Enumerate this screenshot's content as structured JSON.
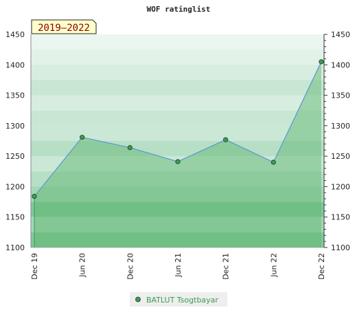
{
  "chart_data": {
    "type": "area",
    "title": "WOF ratinglist",
    "period_label": "2019–2022",
    "x": [
      "Dec 19",
      "Jun 20",
      "Dec 20",
      "Jun 21",
      "Dec 21",
      "Jun 22",
      "Dec 22"
    ],
    "series": [
      {
        "name": "BATLUT Tsogtbayar",
        "values": [
          1184,
          1281,
          1264,
          1241,
          1277,
          1240,
          1405
        ]
      }
    ],
    "ylim": [
      1100,
      1450
    ],
    "yticks": [
      1100,
      1150,
      1200,
      1250,
      1300,
      1350,
      1400,
      1450
    ],
    "left_axis": true,
    "right_axis": true,
    "grid": false,
    "legend_position": "bottom",
    "colors": {
      "line": "#5b9bd5",
      "area_fill": "#5ab46a",
      "marker": "#3e9a55",
      "band_dark": "#7ac596",
      "band_light": "#e9f6ec",
      "period_bg": "#ffffcc",
      "legend_bg": "#eeeeee"
    }
  }
}
